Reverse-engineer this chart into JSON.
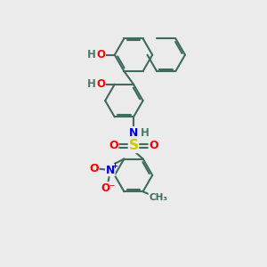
{
  "bg_color": "#ebebeb",
  "bond_color": "#3d6b5e",
  "bond_width": 1.5,
  "atom_colors": {
    "O": "#ff0000",
    "N": "#0000cc",
    "S": "#cccc00",
    "H": "#4a7a6a",
    "C": "#3d6b5e",
    "NO2_N": "#0000cc",
    "NO2_O": "#ff0000"
  },
  "font_size": 8.5
}
